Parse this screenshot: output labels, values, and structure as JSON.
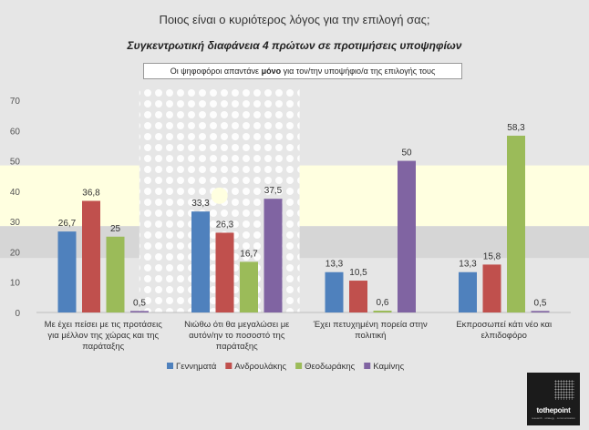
{
  "header": {
    "title": "Ποιος είναι ο κυριότερος λόγος για την επιλογή σας;",
    "subtitle": "Συγκεντρωτική διαφάνεια 4 πρώτων σε προτιμήσεις υποψηφίων",
    "note_before": "Οι ψηφοφόροι απαντάνε ",
    "note_bold": "μόνο",
    "note_after": " για τον/την υποψήφιο/α της επιλογής τους"
  },
  "logo": {
    "text": "tothepoint",
    "tagline": "research · strategy · communication"
  },
  "colors": {
    "series": [
      "#4f81bd",
      "#c0504d",
      "#9bbb59",
      "#8064a2"
    ],
    "band": "#ffffe0"
  },
  "chart_data": {
    "type": "bar",
    "title": "Συγκεντρωτική διαφάνεια 4 πρώτων σε προτιμήσεις υποψηφίων",
    "ylim": [
      0,
      70
    ],
    "yticks": [
      0,
      10,
      20,
      30,
      40,
      50,
      60,
      70
    ],
    "grid": false,
    "legend_position": "bottom",
    "categories": [
      [
        "Με έχει πείσει με τις προτάσεις",
        "για μέλλον της χώρας και της",
        "παράταξης"
      ],
      [
        "Νιώθω ότι θα μεγαλώσει με",
        "αυτόν/ην το ποσοστό της",
        "παράταξης"
      ],
      [
        "Έχει πετυχημένη πορεία στην",
        "πολιτική"
      ],
      [
        "Εκπροσωπεί κάτι νέο και",
        "ελπιδοφόρο"
      ]
    ],
    "series": [
      {
        "name": "Γεννηματά",
        "values": [
          26.7,
          33.3,
          13.3,
          13.3
        ],
        "labels": [
          "26,7",
          "33,3",
          "13,3",
          "13,3"
        ]
      },
      {
        "name": "Ανδρουλάκης",
        "values": [
          36.8,
          26.3,
          10.5,
          15.8
        ],
        "labels": [
          "36,8",
          "26,3",
          "10,5",
          "15,8"
        ]
      },
      {
        "name": "Θεοδωράκης",
        "values": [
          25,
          16.7,
          0.6,
          58.3
        ],
        "labels": [
          "25",
          "16,7",
          "0,6",
          "58,3"
        ]
      },
      {
        "name": "Καμίνης",
        "values": [
          0.5,
          37.5,
          50,
          0.5
        ],
        "labels": [
          "0,5",
          "37,5",
          "50",
          "0,5"
        ]
      }
    ]
  }
}
